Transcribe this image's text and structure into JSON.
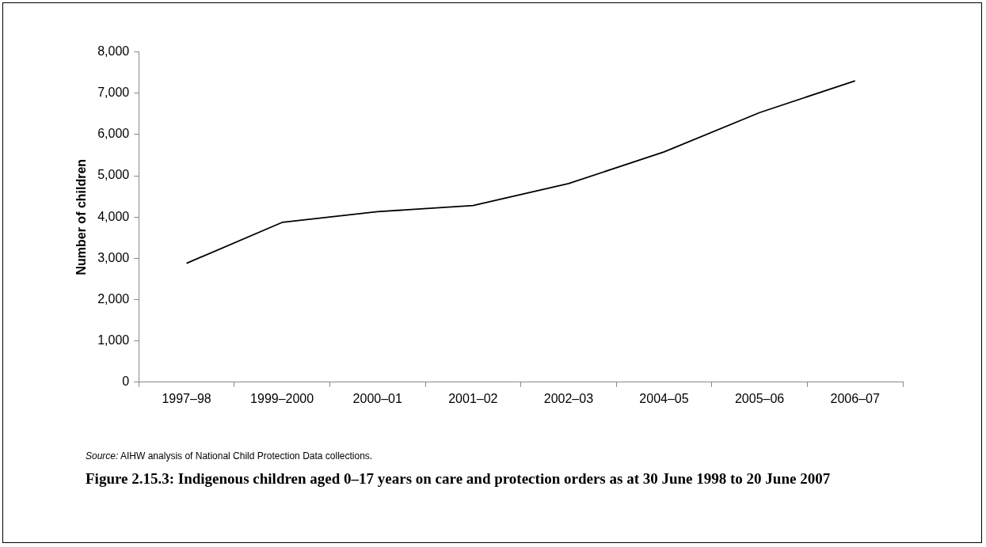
{
  "chart_data": {
    "type": "line",
    "title": "Figure 2.15.3: Indigenous children aged 0–17 years on care and protection orders as at 30 June 1998 to 20 June 2007",
    "ylabel": "Number of children",
    "categories": [
      "1997–98",
      "1999–2000",
      "2000–01",
      "2001–02",
      "2002–03",
      "2004–05",
      "2005–06",
      "2006–07"
    ],
    "series": [
      {
        "color": "#000000",
        "values": [
          2880,
          3870,
          4130,
          4280,
          4810,
          5580,
          6530,
          7300
        ]
      }
    ],
    "ylim": [
      0,
      8000
    ],
    "yticks": [
      {
        "value": 0,
        "label": "0"
      },
      {
        "value": 1000,
        "label": "1,000"
      },
      {
        "value": 2000,
        "label": "2,000"
      },
      {
        "value": 3000,
        "label": "3,000"
      },
      {
        "value": 4000,
        "label": "4,000"
      },
      {
        "value": 5000,
        "label": "5,000"
      },
      {
        "value": 6000,
        "label": "6,000"
      },
      {
        "value": 7000,
        "label": "7,000"
      },
      {
        "value": 8000,
        "label": "8,000"
      }
    ],
    "grid": false,
    "legend": false,
    "marker": "none",
    "line_style": "solid",
    "annotations": [
      "Source: AIHW analysis of National Child Protection Data collections."
    ]
  }
}
